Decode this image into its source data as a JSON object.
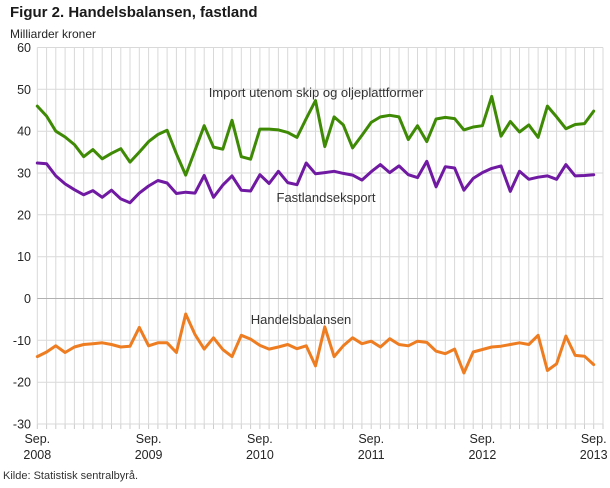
{
  "header": {
    "title": "Figur 2. Handelsbalansen, fastland",
    "subtitle": "Milliarder kroner"
  },
  "source": "Kilde: Statistisk sentralbyrå.",
  "chart_data": {
    "type": "line",
    "title": "Figur 2. Handelsbalansen, fastland",
    "ylabel": "Milliarder kroner",
    "x_start": "Sep. 2008",
    "x_end": "Sep. 2013",
    "frequency": "monthly",
    "n_points": 61,
    "ylim": [
      -30,
      60
    ],
    "y_tick_step": 10,
    "grid": "both",
    "legend_position": "inline-labels",
    "y_tick_labels": [
      "60",
      "50",
      "40",
      "30",
      "20",
      "10",
      "0",
      "-10",
      "-20",
      "-30"
    ],
    "x_tick_month_indexes": [
      0,
      12,
      24,
      36,
      48,
      60
    ],
    "x_tick_labels": [
      [
        "Sep.",
        "2008"
      ],
      [
        "Sep.",
        "2009"
      ],
      [
        "Sep.",
        "2010"
      ],
      [
        "Sep.",
        "2011"
      ],
      [
        "Sep.",
        "2012"
      ],
      [
        "Sep.",
        "2013"
      ]
    ],
    "colors": {
      "import_line": "#3e8a05",
      "export_line": "#7019a2",
      "balance_line": "#ee7d22",
      "grid": "#d9d9d9",
      "zero_line": "#b0b0b0",
      "tick": "#cccccc",
      "label_text": "#333333",
      "axis_text": "#262626"
    },
    "series": [
      {
        "name": "Import utenom skip og oljeplattformer",
        "color": "#3e8a05",
        "values": [
          46.0,
          43.6,
          40.0,
          38.6,
          36.8,
          33.9,
          35.6,
          33.4,
          34.7,
          35.8,
          32.6,
          35.0,
          37.5,
          39.2,
          40.2,
          34.6,
          29.5,
          35.4,
          41.3,
          36.2,
          35.7,
          42.6,
          33.9,
          33.3,
          40.5,
          40.5,
          40.3,
          39.7,
          38.5,
          43.0,
          47.3,
          36.3,
          43.4,
          41.5,
          36.0,
          39.0,
          42.1,
          43.4,
          43.8,
          43.4,
          38.0,
          41.3,
          37.5,
          42.9,
          43.3,
          43.0,
          40.3,
          41.0,
          41.3,
          48.3,
          38.8,
          42.3,
          39.8,
          41.5,
          38.5,
          46.0,
          43.4,
          40.6,
          41.6,
          41.8,
          44.8
        ]
      },
      {
        "name": "Fastlandseksport",
        "color": "#7019a2",
        "values": [
          32.4,
          32.2,
          29.3,
          27.4,
          26.0,
          24.8,
          25.8,
          24.2,
          25.9,
          23.8,
          22.9,
          25.2,
          26.9,
          28.2,
          27.6,
          25.1,
          25.4,
          25.2,
          29.4,
          24.2,
          27.1,
          29.3,
          25.9,
          25.7,
          29.6,
          27.5,
          30.4,
          27.7,
          27.2,
          32.4,
          29.8,
          30.1,
          30.4,
          29.9,
          29.5,
          28.3,
          30.3,
          32.0,
          30.1,
          31.7,
          29.6,
          28.9,
          32.8,
          26.7,
          31.5,
          31.2,
          25.9,
          28.7,
          30.1,
          31.1,
          31.7,
          25.6,
          30.4,
          28.5,
          29.0,
          29.3,
          28.5,
          32.0,
          29.3,
          29.4,
          29.6
        ]
      },
      {
        "name": "Handelsbalansen",
        "color": "#ee7d22",
        "values": [
          -13.9,
          -12.8,
          -11.3,
          -12.9,
          -11.6,
          -11.0,
          -10.8,
          -10.6,
          -11.0,
          -11.6,
          -11.4,
          -6.9,
          -11.3,
          -10.6,
          -10.6,
          -12.9,
          -3.7,
          -8.6,
          -12.1,
          -9.4,
          -12.2,
          -13.9,
          -8.8,
          -9.7,
          -11.2,
          -12.1,
          -11.6,
          -11.0,
          -12.0,
          -11.3,
          -16.1,
          -6.8,
          -13.9,
          -11.3,
          -9.4,
          -10.8,
          -10.2,
          -11.6,
          -9.6,
          -11.0,
          -11.3,
          -10.2,
          -10.5,
          -12.6,
          -13.2,
          -12.1,
          -17.8,
          -12.8,
          -12.2,
          -11.6,
          -11.4,
          -11.0,
          -10.6,
          -11.0,
          -8.8,
          -17.2,
          -15.6,
          -9.0,
          -13.6,
          -13.8,
          -15.8
        ]
      }
    ]
  }
}
